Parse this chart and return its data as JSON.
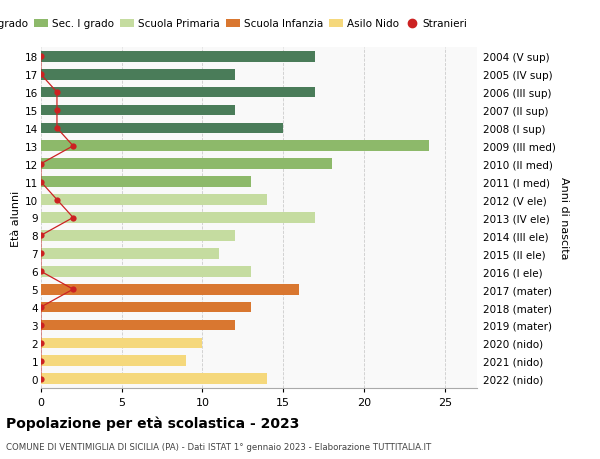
{
  "ages": [
    18,
    17,
    16,
    15,
    14,
    13,
    12,
    11,
    10,
    9,
    8,
    7,
    6,
    5,
    4,
    3,
    2,
    1,
    0
  ],
  "labels_right": [
    "2004 (V sup)",
    "2005 (IV sup)",
    "2006 (III sup)",
    "2007 (II sup)",
    "2008 (I sup)",
    "2009 (III med)",
    "2010 (II med)",
    "2011 (I med)",
    "2012 (V ele)",
    "2013 (IV ele)",
    "2014 (III ele)",
    "2015 (II ele)",
    "2016 (I ele)",
    "2017 (mater)",
    "2018 (mater)",
    "2019 (mater)",
    "2020 (nido)",
    "2021 (nido)",
    "2022 (nido)"
  ],
  "bar_values": [
    17,
    12,
    17,
    12,
    15,
    24,
    18,
    13,
    14,
    17,
    12,
    11,
    13,
    16,
    13,
    12,
    10,
    9,
    14
  ],
  "bar_colors": [
    "#4a7c59",
    "#4a7c59",
    "#4a7c59",
    "#4a7c59",
    "#4a7c59",
    "#8db96a",
    "#8db96a",
    "#8db96a",
    "#c5dca0",
    "#c5dca0",
    "#c5dca0",
    "#c5dca0",
    "#c5dca0",
    "#d97730",
    "#d97730",
    "#d97730",
    "#f5d87c",
    "#f5d87c",
    "#f5d87c"
  ],
  "stranieri_x": [
    0,
    0,
    1,
    1,
    1,
    2,
    0,
    0,
    1,
    2,
    0,
    0,
    0,
    2,
    0,
    0,
    0,
    0,
    0
  ],
  "legend_labels": [
    "Sec. II grado",
    "Sec. I grado",
    "Scuola Primaria",
    "Scuola Infanzia",
    "Asilo Nido",
    "Stranieri"
  ],
  "legend_colors": [
    "#4a7c59",
    "#8db96a",
    "#c5dca0",
    "#d97730",
    "#f5d87c",
    "#cc2222"
  ],
  "ylabel_left": "Età alunni",
  "ylabel_right": "Anni di nascita",
  "title": "Popolazione per età scolastica - 2023",
  "subtitle": "COMUNE DI VENTIMIGLIA DI SICILIA (PA) - Dati ISTAT 1° gennaio 2023 - Elaborazione TUTTITALIA.IT",
  "xlim": [
    0,
    27
  ],
  "ylim": [
    -0.5,
    18.5
  ],
  "background_color": "#ffffff",
  "plot_bg_color": "#f9f9f9",
  "grid_color": "#cccccc"
}
